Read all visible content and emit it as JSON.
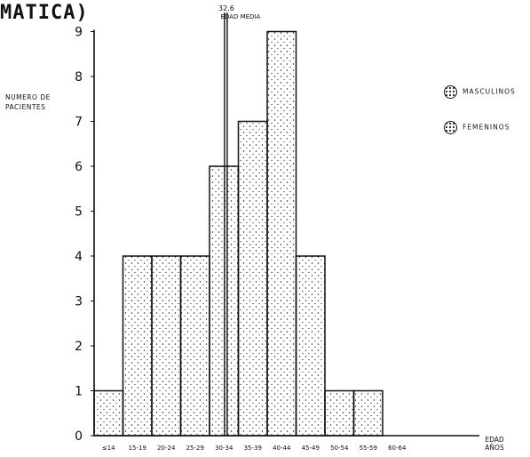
{
  "chart_data": {
    "type": "bar",
    "title": "MATICA)",
    "ylabel": "NUMERO DE PACIENTES",
    "xlabel": "EDAD AÑOS",
    "categories": [
      "≤14",
      "15-19",
      "20-24",
      "25-29",
      "30-34",
      "35-39",
      "40-44",
      "45-49",
      "50-54",
      "55-59",
      "60-64"
    ],
    "values": [
      1,
      4,
      4,
      4,
      6,
      7,
      9,
      4,
      1,
      1,
      0
    ],
    "ylim": [
      0,
      9
    ],
    "yticks": [
      0,
      1,
      2,
      3,
      4,
      5,
      6,
      7,
      8,
      9
    ],
    "mean_line": {
      "value_label": "32.6",
      "label": "EDAD MEDIA",
      "x": 32.6
    },
    "legend": [
      "MASCULINOS",
      "FEMENINOS"
    ],
    "grid": false
  }
}
